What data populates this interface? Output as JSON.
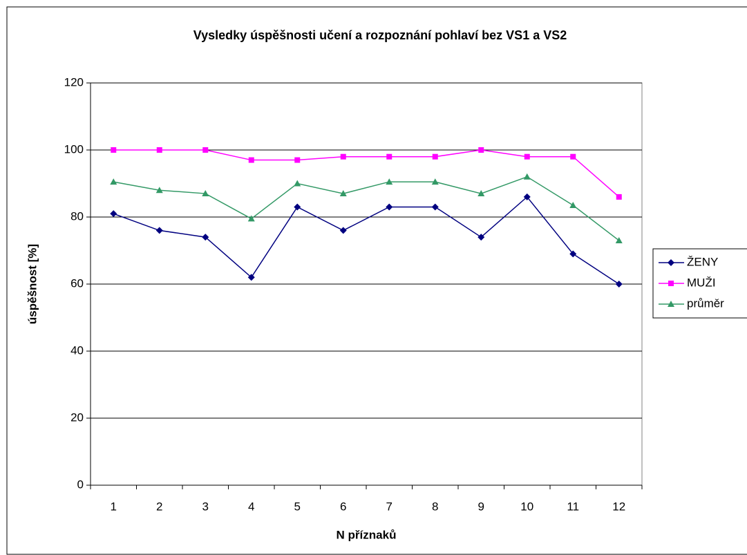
{
  "chart_data": {
    "type": "line",
    "title": "Vysledky úspěšnosti učení a rozpoznání pohlaví bez VS1 a VS2",
    "x_label": "N příznaků",
    "y_label": "úspěšnost [%]",
    "categories": [
      "1",
      "2",
      "3",
      "4",
      "5",
      "6",
      "7",
      "8",
      "9",
      "10",
      "11",
      "12"
    ],
    "series": [
      {
        "name": "ŽENY",
        "color": "#000080",
        "marker": "diamond",
        "values": [
          81,
          76,
          74,
          62,
          83,
          76,
          83,
          83,
          74,
          86,
          69,
          60
        ]
      },
      {
        "name": "MUŽI",
        "color": "#ff00ff",
        "marker": "square",
        "values": [
          100,
          100,
          100,
          97,
          97,
          98,
          98,
          98,
          100,
          98,
          98,
          86
        ]
      },
      {
        "name": "průměr",
        "color": "#339966",
        "marker": "triangle",
        "values": [
          90.5,
          88,
          87,
          79.5,
          90,
          87,
          90.5,
          90.5,
          87,
          92,
          83.5,
          73
        ]
      }
    ],
    "ylim": [
      0,
      120
    ],
    "yticks": [
      0,
      20,
      40,
      60,
      80,
      100,
      120
    ],
    "grid": true,
    "legend": "right"
  }
}
